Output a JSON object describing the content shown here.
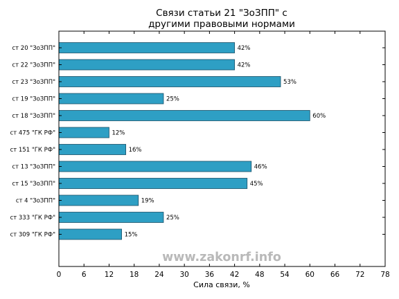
{
  "chart_data": {
    "type": "bar",
    "orientation": "horizontal",
    "title_lines": [
      "Связи статьи 21 \"ЗоЗПП\" с",
      "другими правовыми нормами"
    ],
    "xlabel": "Сила связи, %",
    "ylabel": "",
    "xlim": [
      0,
      78
    ],
    "xticks": [
      0,
      6,
      12,
      18,
      24,
      30,
      36,
      42,
      48,
      54,
      60,
      66,
      72,
      78
    ],
    "categories": [
      "ст 20 \"ЗоЗПП\"",
      "ст 22 \"ЗоЗПП\"",
      "ст 23 \"ЗоЗПП\"",
      "ст 19 \"ЗоЗПП\"",
      "ст 18 \"ЗоЗПП\"",
      "ст 475 \"ГК РФ\"",
      "ст 151 \"ГК РФ\"",
      "ст 13 \"ЗоЗПП\"",
      "ст 15 \"ЗоЗПП\"",
      "ст 4 \"ЗоЗПП\"",
      "ст 333 \"ГК РФ\"",
      "ст 309 \"ГК РФ\""
    ],
    "values": [
      42,
      42,
      53,
      25,
      60,
      12,
      16,
      46,
      45,
      19,
      25,
      15
    ],
    "value_labels": [
      "42%",
      "42%",
      "53%",
      "25%",
      "60%",
      "12%",
      "16%",
      "46%",
      "45%",
      "19%",
      "25%",
      "15%"
    ],
    "bar_color": "#2e9fc4",
    "bar_edge_color": "#1a4f66",
    "grid": false
  },
  "watermark": "www.zakonrf.info"
}
